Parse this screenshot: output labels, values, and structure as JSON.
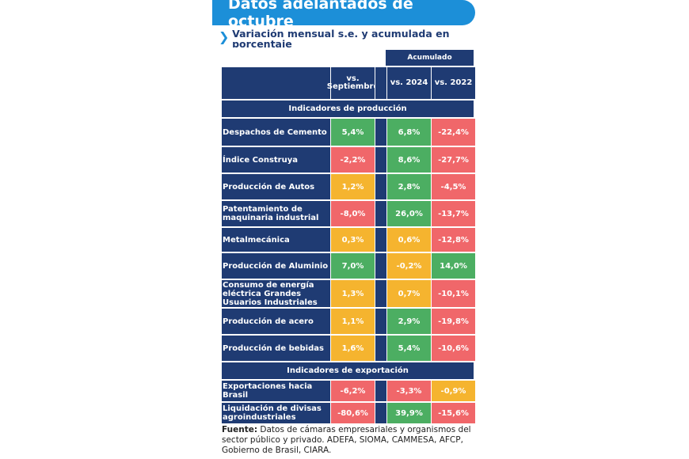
{
  "title": "Datos adelantados de octubre",
  "subtitle": "Variación mensual s.e. y acumulada en porcentaje",
  "colors": {
    "green": "#4cae62",
    "yellow": "#f5b42f",
    "red": "#f0676a",
    "navy": "#1f3b73",
    "brand": "#1c8fd8"
  },
  "header": {
    "acumulado": "Acumulado",
    "col1": "vs. Septiembre",
    "col2": "vs. 2024",
    "col3": "vs. 2022"
  },
  "sections": [
    {
      "title": "Indicadores de producción",
      "rows": [
        {
          "label": "Despachos de Cemento",
          "v": [
            "5,4%",
            "6,8%",
            "-22,4%"
          ],
          "c": [
            "green",
            "green",
            "red"
          ]
        },
        {
          "label": "Índice Construya",
          "v": [
            "-2,2%",
            "8,6%",
            "-27,7%"
          ],
          "c": [
            "red",
            "green",
            "red"
          ]
        },
        {
          "label": "Producción de Autos",
          "v": [
            "1,2%",
            "2,8%",
            "-4,5%"
          ],
          "c": [
            "yellow",
            "green",
            "red"
          ]
        },
        {
          "label": "Patentamiento de maquinaria industrial",
          "v": [
            "-8,0%",
            "26,0%",
            "-13,7%"
          ],
          "c": [
            "red",
            "green",
            "red"
          ]
        },
        {
          "label": "Metalmecánica",
          "v": [
            "0,3%",
            "0,6%",
            "-12,8%"
          ],
          "c": [
            "yellow",
            "yellow",
            "red"
          ]
        },
        {
          "label": "Producción de Aluminio",
          "v": [
            "7,0%",
            "-0,2%",
            "14,0%"
          ],
          "c": [
            "green",
            "yellow",
            "green"
          ]
        },
        {
          "label": "Consumo de energía eléctrica Grandes Usuarios Industriales",
          "v": [
            "1,3%",
            "0,7%",
            "-10,1%"
          ],
          "c": [
            "yellow",
            "yellow",
            "red"
          ]
        },
        {
          "label": "Producción de acero",
          "v": [
            "1,1%",
            "2,9%",
            "-19,8%"
          ],
          "c": [
            "yellow",
            "green",
            "red"
          ]
        },
        {
          "label": "Producción de bebidas",
          "v": [
            "1,6%",
            "5,4%",
            "-10,6%"
          ],
          "c": [
            "yellow",
            "green",
            "red"
          ]
        }
      ]
    },
    {
      "title": "Indicadores de exportación",
      "rows": [
        {
          "label": "Exportaciones hacia Brasil",
          "v": [
            "-6,2%",
            "-3,3%",
            "-0,9%"
          ],
          "c": [
            "red",
            "red",
            "yellow"
          ]
        },
        {
          "label": "Liquidación de divisas agroindustriales",
          "v": [
            "-80,6%",
            "39,9%",
            "-15,6%"
          ],
          "c": [
            "red",
            "green",
            "red"
          ]
        }
      ]
    }
  ],
  "footer": {
    "bold": "Fuente:",
    "text": " Datos de cámaras empresariales y organismos del sector público y privado. ADEFA, SIOMA, CAMMESA, AFCP, Gobierno de Brasil, CIARA."
  }
}
